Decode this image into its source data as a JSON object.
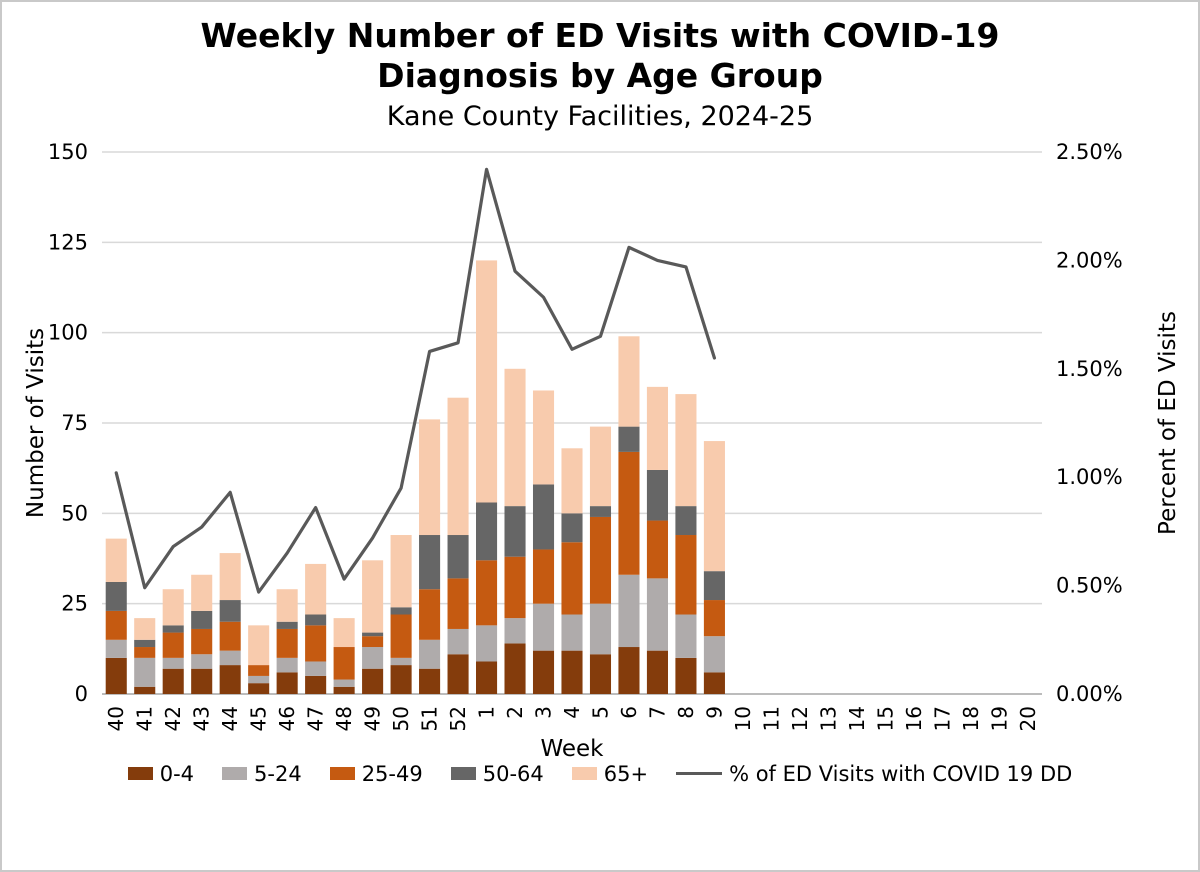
{
  "chart_data": {
    "type": "bar",
    "subtype": "stacked-bar-with-line",
    "title": "Weekly Number of ED Visits with COVID-19 Diagnosis by Age Group",
    "subtitle": "Kane County Facilities, 2024-25",
    "xlabel": "Week",
    "ylabel_left": "Number of Visits",
    "ylabel_right": "Percent of ED Visits",
    "categories": [
      "40",
      "41",
      "42",
      "43",
      "44",
      "45",
      "46",
      "47",
      "48",
      "49",
      "50",
      "51",
      "52",
      "1",
      "2",
      "3",
      "4",
      "5",
      "6",
      "7",
      "8",
      "9",
      "10",
      "11",
      "12",
      "13",
      "14",
      "15",
      "16",
      "17",
      "18",
      "19",
      "20"
    ],
    "stack_series": [
      {
        "name": "0-4",
        "color": "#843C0C",
        "values": [
          10,
          2,
          7,
          7,
          8,
          3,
          6,
          5,
          2,
          7,
          8,
          7,
          11,
          9,
          14,
          12,
          12,
          11,
          13,
          12,
          10,
          6
        ]
      },
      {
        "name": "5-24",
        "color": "#AFABAB",
        "values": [
          5,
          8,
          3,
          4,
          4,
          2,
          4,
          4,
          2,
          6,
          2,
          8,
          7,
          10,
          7,
          13,
          10,
          14,
          20,
          20,
          12,
          10
        ]
      },
      {
        "name": "25-49",
        "color": "#C55A11",
        "values": [
          8,
          3,
          7,
          7,
          8,
          3,
          8,
          10,
          9,
          3,
          12,
          14,
          14,
          18,
          17,
          15,
          20,
          24,
          34,
          16,
          22,
          10
        ]
      },
      {
        "name": "50-64",
        "color": "#666666",
        "values": [
          8,
          2,
          2,
          5,
          6,
          0,
          2,
          3,
          0,
          1,
          2,
          15,
          12,
          16,
          14,
          18,
          8,
          3,
          7,
          14,
          8,
          8
        ]
      },
      {
        "name": "65+",
        "color": "#F8CBAD",
        "values": [
          12,
          6,
          10,
          10,
          13,
          11,
          9,
          14,
          8,
          20,
          20,
          32,
          38,
          67,
          38,
          26,
          18,
          22,
          25,
          23,
          31,
          36
        ]
      }
    ],
    "line_series": {
      "name": "% of ED Visits with COVID 19 DD",
      "color": "#595959",
      "values": [
        1.02,
        0.49,
        0.68,
        0.77,
        0.93,
        0.47,
        0.65,
        0.86,
        0.53,
        0.72,
        0.95,
        1.58,
        1.62,
        2.42,
        1.95,
        1.83,
        1.59,
        1.65,
        2.06,
        2.0,
        1.97,
        1.55
      ]
    },
    "y_left": {
      "min": 0,
      "max": 150,
      "step": 25,
      "ticks": [
        "0",
        "25",
        "50",
        "75",
        "100",
        "125",
        "150"
      ]
    },
    "y_right": {
      "min": 0,
      "max": 2.5,
      "step": 0.5,
      "ticks": [
        "0.00%",
        "0.50%",
        "1.00%",
        "1.50%",
        "2.00%",
        "2.50%"
      ]
    },
    "grid": "horizontal",
    "legend_position": "bottom"
  },
  "colors": {
    "gridline": "#d9d9d9",
    "axis_line": "#a6a6a6",
    "text": "#000000",
    "frame_border": "#c9c9c9"
  }
}
